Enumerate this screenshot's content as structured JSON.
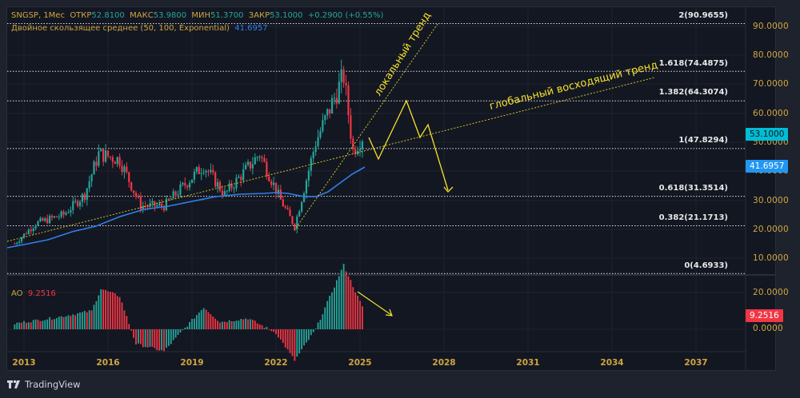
{
  "header": {
    "symbol": "SNGSP, 1Мес",
    "open_label": "ОТКР",
    "open": "52.8100",
    "high_label": "МАКС",
    "high": "53.9800",
    "low_label": "МИН",
    "low": "51.3700",
    "close_label": "ЗАКР",
    "close": "53.1000",
    "change": "+0.2900 (+0.55%)"
  },
  "indicator": {
    "name": "Двойное скользящее среднее (50, 100, Exponential)",
    "value": "41.6957"
  },
  "ao": {
    "name": "AO",
    "value": "9.2516"
  },
  "price_tags": {
    "last": "53.1000",
    "ma": "41.6957",
    "ao": "9.2516"
  },
  "annotations": {
    "local": "локальный тренд",
    "global": "глобальный восходящий тренд"
  },
  "brand": {
    "name": "TradingView"
  },
  "colors": {
    "up": "#26a69a",
    "down": "#f23645",
    "ma": "#2f80ed",
    "accent": "#f5e12a",
    "axis": "#d1a640"
  },
  "chart_data": [
    {
      "type": "candlestick",
      "title": "SNGSP, 1Мес",
      "xlabel": "",
      "ylabel": "",
      "x_ticks": [
        "2013",
        "2016",
        "2019",
        "2022",
        "2025",
        "2028",
        "2031",
        "2034",
        "2037"
      ],
      "y_ticks": [
        "10.0000",
        "20.0000",
        "30.0000",
        "40.0000",
        "50.0000",
        "60.0000",
        "70.0000",
        "80.0000",
        "90.0000"
      ],
      "ylim": [
        4,
        94
      ],
      "last": {
        "open": 52.81,
        "high": 53.98,
        "low": 51.37,
        "close": 53.1,
        "change": 0.29,
        "change_pct": 0.55
      },
      "approx_price_path": [
        {
          "x": "2012-09",
          "price": 15
        },
        {
          "x": "2013-06",
          "price": 22
        },
        {
          "x": "2014-06",
          "price": 25
        },
        {
          "x": "2015-03",
          "price": 32
        },
        {
          "x": "2015-09",
          "price": 46
        },
        {
          "x": "2016-06",
          "price": 44
        },
        {
          "x": "2017-03",
          "price": 28
        },
        {
          "x": "2018-01",
          "price": 28
        },
        {
          "x": "2019-06",
          "price": 42
        },
        {
          "x": "2020-03",
          "price": 32
        },
        {
          "x": "2021-06",
          "price": 46
        },
        {
          "x": "2022-03",
          "price": 30
        },
        {
          "x": "2022-09",
          "price": 21
        },
        {
          "x": "2023-06",
          "price": 50
        },
        {
          "x": "2024-06",
          "price": 73
        },
        {
          "x": "2024-10",
          "price": 47
        },
        {
          "x": "2025-03",
          "price": 53
        }
      ],
      "series": [
        {
          "name": "Двойное скользящее среднее (50, 100, Exponential)",
          "last": 41.6957,
          "values": [
            {
              "x": "2012-09",
              "y": 13
            },
            {
              "x": "2016-01",
              "y": 24
            },
            {
              "x": "2019-01",
              "y": 34
            },
            {
              "x": "2021-06",
              "y": 38
            },
            {
              "x": "2022-09",
              "y": 35
            },
            {
              "x": "2023-06",
              "y": 40
            },
            {
              "x": "2025-03",
              "y": 41.7
            }
          ]
        }
      ],
      "fib_levels": [
        {
          "level": "2",
          "value": 90.9655
        },
        {
          "level": "1.618",
          "value": 74.4875
        },
        {
          "level": "1.382",
          "value": 64.3074
        },
        {
          "level": "1",
          "value": 47.8294
        },
        {
          "level": "0.618",
          "value": 31.3514
        },
        {
          "level": "0.382",
          "value": 21.1713
        },
        {
          "level": "0",
          "value": 4.6933
        }
      ],
      "trendlines": [
        {
          "name": "локальный тренд",
          "from": {
            "x": "2022-09",
            "y": 20
          },
          "to": {
            "x": "2027-06",
            "y": 92
          }
        },
        {
          "name": "глобальный восходящий тренд",
          "from": {
            "x": "2012-09",
            "y": 14
          },
          "to": {
            "x": "2036-09",
            "y": 73
          }
        }
      ],
      "projection_path": [
        {
          "x": "2025-04",
          "y": 53
        },
        {
          "x": "2025-10",
          "y": 44
        },
        {
          "x": "2026-08",
          "y": 64
        },
        {
          "x": "2027-03",
          "y": 52
        },
        {
          "x": "2027-08",
          "y": 56
        },
        {
          "x": "2028-05",
          "y": 31
        }
      ]
    },
    {
      "type": "bar",
      "title": "AO",
      "y_ticks": [
        "0.0000",
        "20.0000"
      ],
      "last": 9.2516,
      "approx_values": [
        {
          "x": "2013",
          "y": 4
        },
        {
          "x": "2014",
          "y": 6
        },
        {
          "x": "2015-06",
          "y": 10
        },
        {
          "x": "2015-10",
          "y": 22
        },
        {
          "x": "2016-06",
          "y": 18
        },
        {
          "x": "2017",
          "y": -8
        },
        {
          "x": "2018",
          "y": -12
        },
        {
          "x": "2019-06",
          "y": 12
        },
        {
          "x": "2020",
          "y": 4
        },
        {
          "x": "2021",
          "y": 6
        },
        {
          "x": "2022",
          "y": -2
        },
        {
          "x": "2022-09",
          "y": -17
        },
        {
          "x": "2023-06",
          "y": 0
        },
        {
          "x": "2024-06",
          "y": 35
        },
        {
          "x": "2025-03",
          "y": 9.25
        }
      ]
    }
  ]
}
